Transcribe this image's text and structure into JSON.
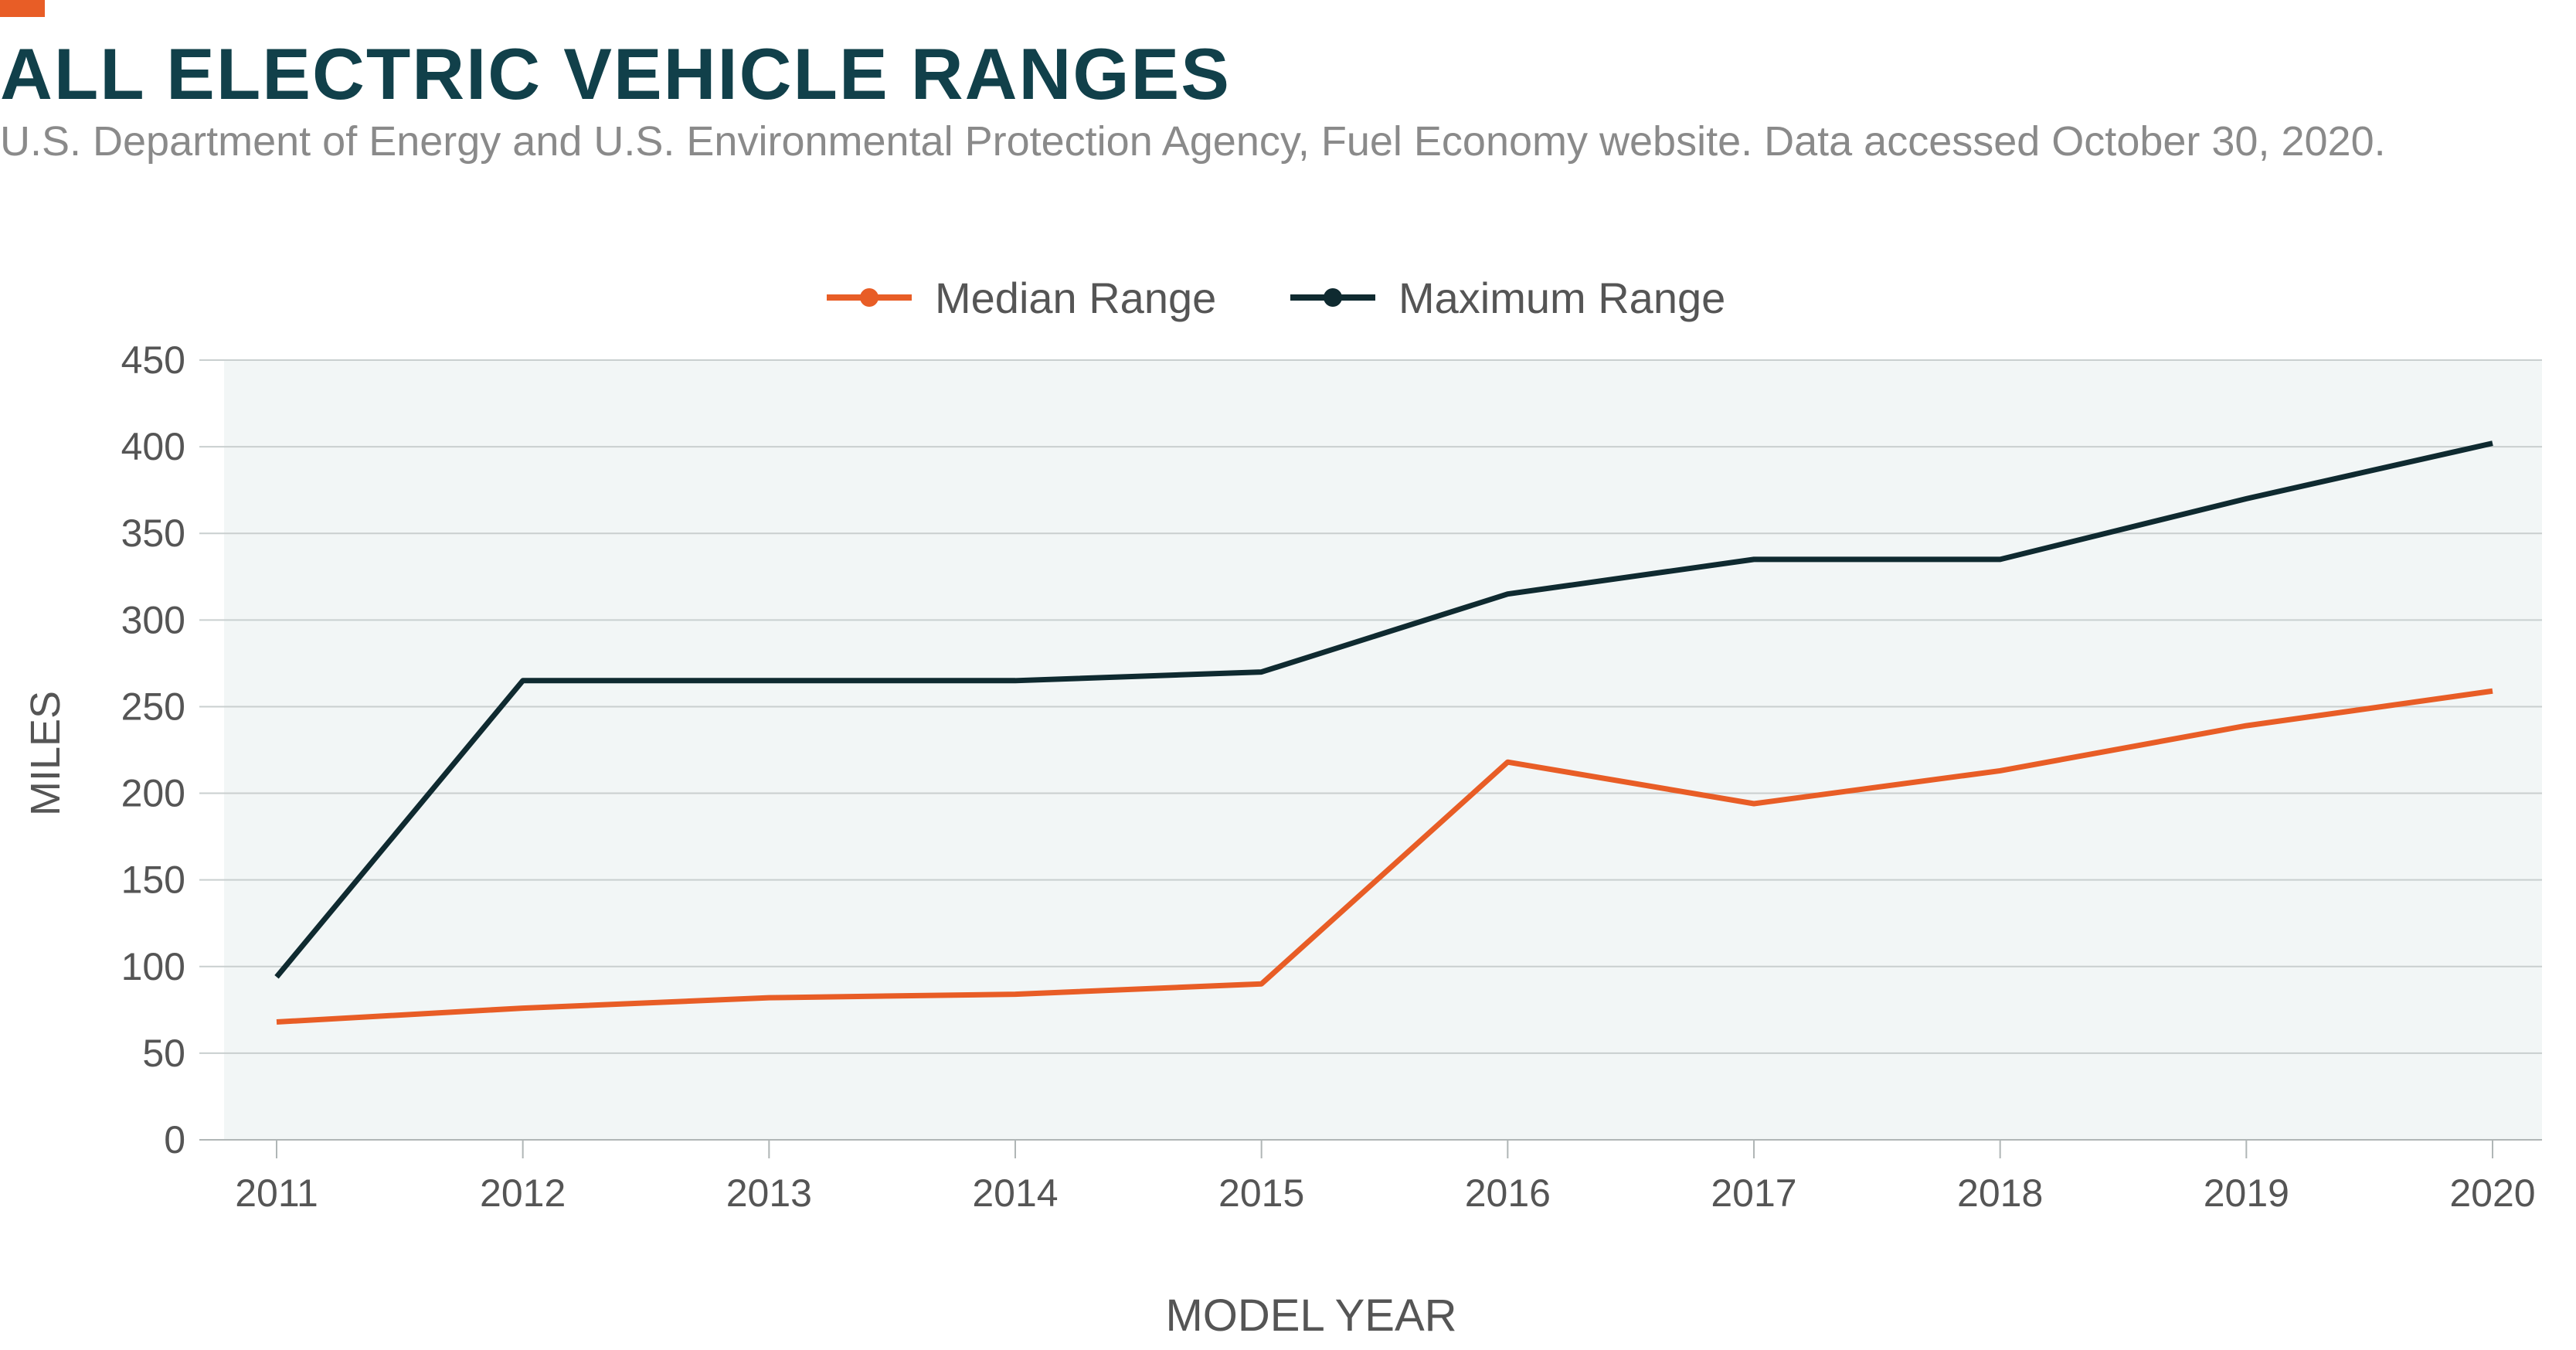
{
  "header": {
    "title": "ALL ELECTRIC VEHICLE RANGES",
    "subtitle": "U.S. Department of Energy and U.S. Environmental Protection Agency, Fuel Economy website. Data accessed October 30, 2020."
  },
  "colors": {
    "accent": "#e85d26",
    "median": "#e85d26",
    "maximum": "#0f2a30",
    "title": "#11404a",
    "plot_bg": "#f2f6f6",
    "grid": "#c9cfcf",
    "text": "#555555"
  },
  "chart_data": {
    "type": "line",
    "title": "ALL ELECTRIC VEHICLE RANGES",
    "xlabel": "MODEL YEAR",
    "ylabel": "MILES",
    "ylim": [
      0,
      450
    ],
    "yticks": [
      0,
      50,
      100,
      150,
      200,
      250,
      300,
      350,
      400,
      450
    ],
    "grid": true,
    "legend_position": "top-center",
    "x": [
      "2011",
      "2012",
      "2013",
      "2014",
      "2015",
      "2016",
      "2017",
      "2018",
      "2019",
      "2020"
    ],
    "series": [
      {
        "name": "Median Range",
        "color": "#e85d26",
        "values": [
          68,
          76,
          82,
          84,
          90,
          218,
          194,
          213,
          239,
          259
        ]
      },
      {
        "name": "Maximum Range",
        "color": "#0f2a30",
        "values": [
          94,
          265,
          265,
          265,
          270,
          315,
          335,
          335,
          370,
          402
        ]
      }
    ]
  }
}
